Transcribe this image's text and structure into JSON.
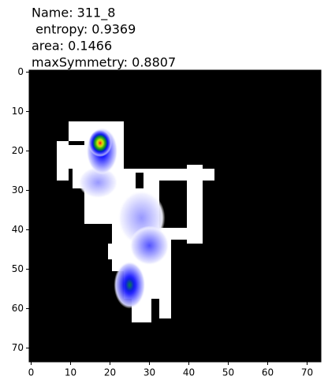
{
  "chart_data": {
    "type": "image",
    "title": [
      "Name: 311_8",
      " entropy: 0.9369",
      "area: 0.1466",
      "maxSymmetry: 0.8807"
    ],
    "xlim": [
      -0.5,
      73.5
    ],
    "ylim": [
      73.5,
      -0.5
    ],
    "xticks": [
      0,
      10,
      20,
      30,
      40,
      50,
      60,
      70
    ],
    "yticks": [
      0,
      10,
      20,
      30,
      40,
      50,
      60,
      70
    ],
    "background": "#000000",
    "mask_color": "#ffffff",
    "mask": [
      [
        6.5,
        17.5,
        9.5,
        27.5
      ],
      [
        9.5,
        12.5,
        23.5,
        24.5
      ],
      [
        10.5,
        24.5,
        24.5,
        29.5
      ],
      [
        13.5,
        24.5,
        32.5,
        38.5
      ],
      [
        20.5,
        38.5,
        35.5,
        50.5
      ],
      [
        19.5,
        43.5,
        24.5,
        47.5
      ],
      [
        23.5,
        49.5,
        35.5,
        57.5
      ],
      [
        25.5,
        57.5,
        30.5,
        63.5
      ],
      [
        32.5,
        46.5,
        35.5,
        62.5
      ],
      [
        32.5,
        24.5,
        46.5,
        27.5
      ],
      [
        39.5,
        23.5,
        43.5,
        43.5
      ],
      [
        34.5,
        39.5,
        43.5,
        42.5
      ]
    ],
    "holes": [
      [
        9.5,
        17.5,
        13.5,
        18.5
      ],
      [
        26.5,
        25.5,
        28.5,
        29.5
      ],
      [
        32.5,
        27.5,
        39.5,
        39.5
      ]
    ],
    "colormap": [
      [
        0,
        "#ffffff"
      ],
      [
        0.35,
        "#0000ff"
      ],
      [
        0.55,
        "#00a000"
      ],
      [
        0.8,
        "#ffff00"
      ],
      [
        1,
        "#ff0000"
      ]
    ],
    "blobs": [
      {
        "x": 17,
        "y": 28,
        "rx": 5,
        "ry": 4,
        "peak": 0.15
      },
      {
        "x": 28,
        "y": 37,
        "rx": 6,
        "ry": 7,
        "peak": 0.15
      },
      {
        "x": 30,
        "y": 44,
        "rx": 5,
        "ry": 5,
        "peak": 0.25
      },
      {
        "x": 25,
        "y": 54,
        "rx": 4,
        "ry": 6,
        "peak": 0.5
      },
      {
        "x": 18,
        "y": 20,
        "rx": 4,
        "ry": 6,
        "peak": 0.45
      },
      {
        "x": 17.5,
        "y": 18,
        "rx": 3,
        "ry": 3.5,
        "peak": 1
      }
    ]
  }
}
